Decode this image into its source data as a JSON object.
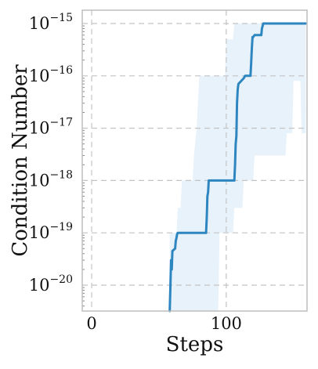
{
  "chart_data": {
    "type": "line",
    "title": "",
    "xlabel": "Steps",
    "ylabel": "Condition Number",
    "xlim": [
      -7,
      160
    ],
    "ylim": [
      1e-20,
      1e-15
    ],
    "y_scale": "log",
    "x_ticks": [
      0,
      100
    ],
    "x_tick_labels": [
      "0",
      "100"
    ],
    "y_ticks": [
      1e-20,
      1e-19,
      1e-18,
      1e-17,
      1e-16,
      1e-15
    ],
    "y_tick_labels": [
      {
        "base": "10",
        "exp": "−20"
      },
      {
        "base": "10",
        "exp": "−19"
      },
      {
        "base": "10",
        "exp": "−18"
      },
      {
        "base": "10",
        "exp": "−17"
      },
      {
        "base": "10",
        "exp": "−16"
      },
      {
        "base": "10",
        "exp": "−15"
      }
    ],
    "grid": true,
    "line_color": "#2e86c1",
    "band_color": "#d6e8f5",
    "series": [
      {
        "x": [
          58,
          58.5,
          59,
          59.5,
          60,
          62,
          62.5,
          63,
          63.5,
          64,
          85,
          85.5,
          86,
          86.5,
          87,
          106,
          106.5,
          107,
          107.5,
          108,
          108.5,
          109,
          113,
          114,
          115,
          115.5,
          116,
          118,
          118.5,
          119,
          119.5,
          120,
          121,
          126,
          126.5,
          127,
          127.5,
          128,
          129,
          130,
          131,
          132,
          133,
          159
        ],
        "y": [
          3e-21,
          1e-20,
          3e-20,
          2e-20,
          4.5e-20,
          5e-20,
          7e-20,
          8e-20,
          9.5e-20,
          1e-19,
          1e-19,
          2e-19,
          5e-19,
          6e-19,
          1e-18,
          1e-18,
          2e-18,
          5e-18,
          7e-18,
          3e-17,
          5.5e-17,
          7e-17,
          9e-17,
          1e-16,
          1e-16,
          1e-16,
          1e-16,
          1e-16,
          1.8e-16,
          3.3e-16,
          5.5e-16,
          5.5e-16,
          6e-16,
          6e-16,
          8e-16,
          9e-16,
          1e-15,
          1e-15,
          1e-15,
          1e-15,
          1e-15,
          1e-15,
          1e-15,
          1e-15
        ]
      }
    ],
    "band": {
      "upper": [
        [
          58,
          1e-19
        ],
        [
          60,
          1e-19
        ],
        [
          61,
          1e-19
        ],
        [
          63,
          1e-19
        ],
        [
          64,
          3e-19
        ],
        [
          66,
          3e-19
        ],
        [
          67,
          1e-18
        ],
        [
          75,
          1e-18
        ],
        [
          76,
          3e-18
        ],
        [
          78,
          1e-17
        ],
        [
          80,
          1e-16
        ],
        [
          86,
          1e-16
        ],
        [
          88,
          1e-16
        ],
        [
          99,
          1e-16
        ],
        [
          100,
          5e-16
        ],
        [
          105,
          5e-16
        ],
        [
          106,
          1e-15
        ],
        [
          159,
          1e-15
        ]
      ],
      "lower": [
        [
          58,
          3e-21
        ],
        [
          86,
          3e-21
        ],
        [
          94,
          3e-21
        ],
        [
          95,
          1e-19
        ],
        [
          96,
          1e-19
        ],
        [
          105,
          1e-19
        ],
        [
          106,
          3e-19
        ],
        [
          112,
          3e-19
        ],
        [
          113,
          1e-18
        ],
        [
          120,
          1e-18
        ],
        [
          121,
          3e-18
        ],
        [
          144,
          3e-18
        ],
        [
          145,
          8e-18
        ],
        [
          149,
          8e-18
        ],
        [
          150,
          8e-17
        ],
        [
          155,
          8e-17
        ],
        [
          156,
          8e-18
        ],
        [
          159,
          8e-18
        ]
      ]
    }
  }
}
